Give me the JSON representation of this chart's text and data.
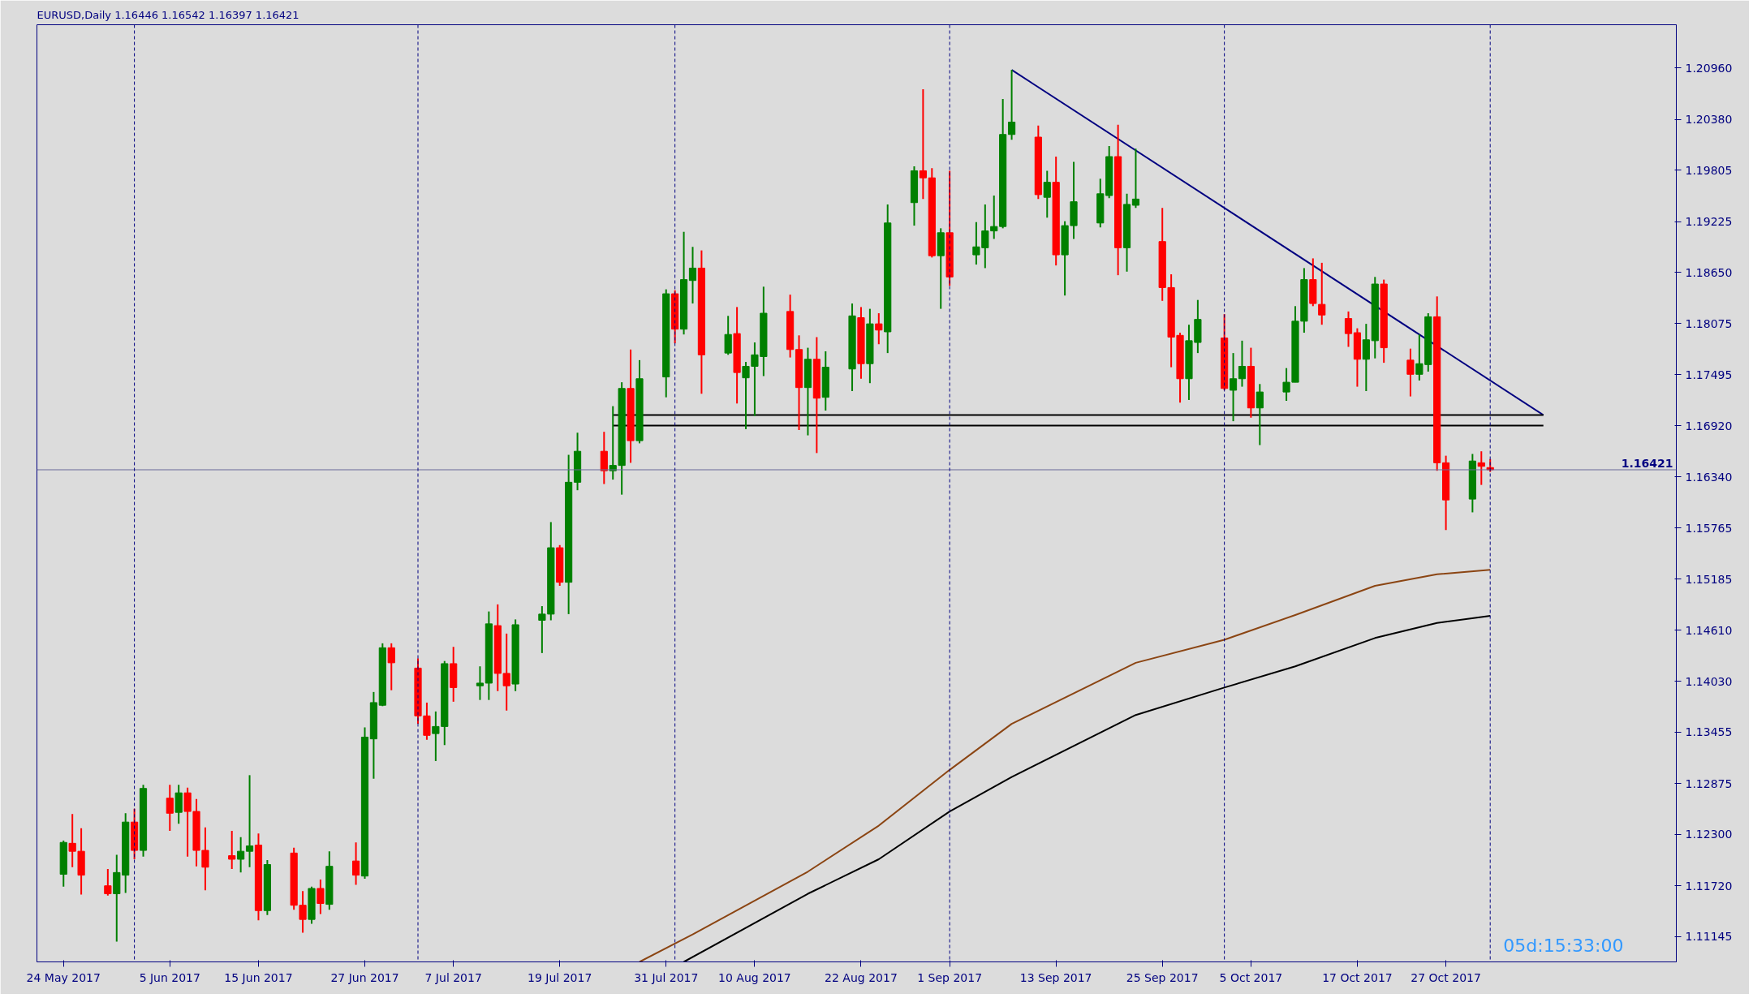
{
  "chart_data": {
    "type": "candlestick",
    "title": "EURUSD,Daily  1.16446 1.16542 1.16397 1.16421",
    "x": [
      "2017-05-24",
      "2017-05-25",
      "2017-05-26",
      "2017-05-29",
      "2017-05-30",
      "2017-05-31",
      "2017-06-01",
      "2017-06-02",
      "2017-06-05",
      "2017-06-06",
      "2017-06-07",
      "2017-06-08",
      "2017-06-09",
      "2017-06-12",
      "2017-06-13",
      "2017-06-14",
      "2017-06-15",
      "2017-06-16",
      "2017-06-19",
      "2017-06-20",
      "2017-06-21",
      "2017-06-22",
      "2017-06-23",
      "2017-06-26",
      "2017-06-27",
      "2017-06-28",
      "2017-06-29",
      "2017-06-30",
      "2017-07-03",
      "2017-07-04",
      "2017-07-05",
      "2017-07-06",
      "2017-07-07",
      "2017-07-10",
      "2017-07-11",
      "2017-07-12",
      "2017-07-13",
      "2017-07-14",
      "2017-07-17",
      "2017-07-18",
      "2017-07-19",
      "2017-07-20",
      "2017-07-21",
      "2017-07-24",
      "2017-07-25",
      "2017-07-26",
      "2017-07-27",
      "2017-07-28",
      "2017-07-31",
      "2017-08-01",
      "2017-08-02",
      "2017-08-03",
      "2017-08-04",
      "2017-08-07",
      "2017-08-08",
      "2017-08-09",
      "2017-08-10",
      "2017-08-11",
      "2017-08-14",
      "2017-08-15",
      "2017-08-16",
      "2017-08-17",
      "2017-08-18",
      "2017-08-21",
      "2017-08-22",
      "2017-08-23",
      "2017-08-24",
      "2017-08-25",
      "2017-08-28",
      "2017-08-29",
      "2017-08-30",
      "2017-08-31",
      "2017-09-01",
      "2017-09-04",
      "2017-09-05",
      "2017-09-06",
      "2017-09-07",
      "2017-09-08",
      "2017-09-11",
      "2017-09-12",
      "2017-09-13",
      "2017-09-14",
      "2017-09-15",
      "2017-09-18",
      "2017-09-19",
      "2017-09-20",
      "2017-09-21",
      "2017-09-22",
      "2017-09-25",
      "2017-09-26",
      "2017-09-27",
      "2017-09-28",
      "2017-09-29",
      "2017-10-02",
      "2017-10-03",
      "2017-10-04",
      "2017-10-05",
      "2017-10-06",
      "2017-10-09",
      "2017-10-10",
      "2017-10-11",
      "2017-10-12",
      "2017-10-13",
      "2017-10-16",
      "2017-10-17",
      "2017-10-18",
      "2017-10-19",
      "2017-10-20",
      "2017-10-23",
      "2017-10-24",
      "2017-10-25",
      "2017-10-26",
      "2017-10-27",
      "2017-10-30",
      "2017-10-31",
      "2017-11-01"
    ],
    "ohlc": [
      [
        1.1185,
        1.1223,
        1.1171,
        1.1221
      ],
      [
        1.122,
        1.1253,
        1.1193,
        1.1211
      ],
      [
        1.1211,
        1.1237,
        1.1162,
        1.1184
      ],
      [
        1.1172,
        1.1191,
        1.1161,
        1.1163
      ],
      [
        1.1163,
        1.1207,
        1.1109,
        1.1187
      ],
      [
        1.1184,
        1.1254,
        1.1164,
        1.1244
      ],
      [
        1.1244,
        1.1259,
        1.1202,
        1.1212
      ],
      [
        1.1212,
        1.1286,
        1.1205,
        1.1282
      ],
      [
        1.1271,
        1.1286,
        1.1234,
        1.1254
      ],
      [
        1.1255,
        1.1286,
        1.1242,
        1.1277
      ],
      [
        1.1277,
        1.1283,
        1.1205,
        1.1256
      ],
      [
        1.1256,
        1.127,
        1.1194,
        1.1212
      ],
      [
        1.1212,
        1.1238,
        1.1167,
        1.1193
      ],
      [
        1.1206,
        1.1234,
        1.1191,
        1.1202
      ],
      [
        1.1202,
        1.1227,
        1.1187,
        1.1211
      ],
      [
        1.1211,
        1.1297,
        1.1193,
        1.1217
      ],
      [
        1.1218,
        1.1231,
        1.1133,
        1.1144
      ],
      [
        1.1144,
        1.1201,
        1.1139,
        1.1196
      ],
      [
        1.1209,
        1.1215,
        1.1145,
        1.115
      ],
      [
        1.115,
        1.1166,
        1.1119,
        1.1134
      ],
      [
        1.1134,
        1.1171,
        1.1129,
        1.1169
      ],
      [
        1.1169,
        1.1179,
        1.114,
        1.1152
      ],
      [
        1.1151,
        1.1211,
        1.1145,
        1.1194
      ],
      [
        1.12,
        1.1221,
        1.1173,
        1.1184
      ],
      [
        1.1183,
        1.1351,
        1.118,
        1.134
      ],
      [
        1.1338,
        1.1391,
        1.1293,
        1.1379
      ],
      [
        1.1376,
        1.1446,
        1.1375,
        1.1441
      ],
      [
        1.1441,
        1.1446,
        1.1393,
        1.1424
      ],
      [
        1.1418,
        1.1429,
        1.1355,
        1.1364
      ],
      [
        1.1364,
        1.1379,
        1.1337,
        1.1342
      ],
      [
        1.1344,
        1.1369,
        1.1313,
        1.1352
      ],
      [
        1.1352,
        1.1426,
        1.1331,
        1.1423
      ],
      [
        1.1423,
        1.1442,
        1.138,
        1.1396
      ],
      [
        1.1398,
        1.142,
        1.1382,
        1.1401
      ],
      [
        1.1401,
        1.1482,
        1.1382,
        1.1468
      ],
      [
        1.1466,
        1.149,
        1.1392,
        1.1412
      ],
      [
        1.1412,
        1.1457,
        1.137,
        1.1398
      ],
      [
        1.14,
        1.1473,
        1.1392,
        1.1467
      ],
      [
        1.1472,
        1.1488,
        1.1435,
        1.1479
      ],
      [
        1.1479,
        1.1583,
        1.1472,
        1.1554
      ],
      [
        1.1554,
        1.1557,
        1.1511,
        1.1515
      ],
      [
        1.1515,
        1.1659,
        1.1479,
        1.1628
      ],
      [
        1.1628,
        1.1684,
        1.1619,
        1.1663
      ],
      [
        1.1663,
        1.1685,
        1.1626,
        1.1641
      ],
      [
        1.1641,
        1.1714,
        1.1631,
        1.1647
      ],
      [
        1.1647,
        1.1741,
        1.1614,
        1.1734
      ],
      [
        1.1734,
        1.1778,
        1.165,
        1.1675
      ],
      [
        1.1675,
        1.1766,
        1.1672,
        1.1745
      ],
      [
        1.1747,
        1.1846,
        1.1724,
        1.1841
      ],
      [
        1.1841,
        1.1845,
        1.1785,
        1.1801
      ],
      [
        1.1801,
        1.1911,
        1.1795,
        1.1857
      ],
      [
        1.1856,
        1.1894,
        1.183,
        1.187
      ],
      [
        1.187,
        1.189,
        1.1728,
        1.1772
      ],
      [
        1.1774,
        1.1816,
        1.1772,
        1.1795
      ],
      [
        1.1796,
        1.1826,
        1.1717,
        1.1752
      ],
      [
        1.1746,
        1.1764,
        1.1688,
        1.1759
      ],
      [
        1.1759,
        1.1786,
        1.1703,
        1.1772
      ],
      [
        1.177,
        1.1849,
        1.1748,
        1.1819
      ],
      [
        1.1821,
        1.184,
        1.1769,
        1.1778
      ],
      [
        1.1778,
        1.1794,
        1.1687,
        1.1735
      ],
      [
        1.1735,
        1.178,
        1.1681,
        1.1767
      ],
      [
        1.1767,
        1.1792,
        1.1661,
        1.1723
      ],
      [
        1.1724,
        1.1776,
        1.1709,
        1.1758
      ],
      [
        1.1756,
        1.183,
        1.1731,
        1.1816
      ],
      [
        1.1814,
        1.1826,
        1.1745,
        1.1762
      ],
      [
        1.1762,
        1.1824,
        1.174,
        1.1807
      ],
      [
        1.1807,
        1.1819,
        1.1784,
        1.18
      ],
      [
        1.1798,
        1.1942,
        1.1774,
        1.1921
      ],
      [
        1.1944,
        1.1985,
        1.1918,
        1.198
      ],
      [
        1.198,
        1.2072,
        1.1948,
        1.1972
      ],
      [
        1.1972,
        1.1983,
        1.1882,
        1.1884
      ],
      [
        1.1884,
        1.1915,
        1.1824,
        1.191
      ],
      [
        1.191,
        1.198,
        1.185,
        1.186
      ],
      [
        1.1885,
        1.1922,
        1.1874,
        1.1894
      ],
      [
        1.1893,
        1.1942,
        1.187,
        1.1912
      ],
      [
        1.1912,
        1.1952,
        1.1903,
        1.1917
      ],
      [
        1.1917,
        1.2061,
        1.1915,
        1.2021
      ],
      [
        1.2021,
        1.2094,
        1.2015,
        1.2035
      ],
      [
        1.2018,
        1.2031,
        1.1948,
        1.1953
      ],
      [
        1.195,
        1.198,
        1.1927,
        1.1967
      ],
      [
        1.1967,
        1.1996,
        1.1873,
        1.1885
      ],
      [
        1.1885,
        1.1923,
        1.1839,
        1.1918
      ],
      [
        1.1918,
        1.199,
        1.1903,
        1.1945
      ],
      [
        1.1921,
        1.1971,
        1.1916,
        1.1954
      ],
      [
        1.1952,
        1.2008,
        1.1949,
        1.1996
      ],
      [
        1.1996,
        1.2032,
        1.1862,
        1.1893
      ],
      [
        1.1893,
        1.1954,
        1.1866,
        1.1942
      ],
      [
        1.1941,
        1.2005,
        1.1938,
        1.1948
      ],
      [
        1.19,
        1.1938,
        1.1833,
        1.1848
      ],
      [
        1.1848,
        1.1863,
        1.1758,
        1.1792
      ],
      [
        1.1794,
        1.1797,
        1.1718,
        1.1745
      ],
      [
        1.1745,
        1.1806,
        1.1721,
        1.1788
      ],
      [
        1.1786,
        1.1834,
        1.1774,
        1.1812
      ],
      [
        1.1791,
        1.1818,
        1.1732,
        1.1734
      ],
      [
        1.1732,
        1.1774,
        1.1697,
        1.1745
      ],
      [
        1.1745,
        1.1788,
        1.1736,
        1.1759
      ],
      [
        1.1759,
        1.178,
        1.1701,
        1.1712
      ],
      [
        1.1712,
        1.1739,
        1.167,
        1.173
      ],
      [
        1.173,
        1.1757,
        1.172,
        1.1741
      ],
      [
        1.1741,
        1.1827,
        1.1741,
        1.181
      ],
      [
        1.181,
        1.187,
        1.1797,
        1.1857
      ],
      [
        1.1857,
        1.1881,
        1.1827,
        1.183
      ],
      [
        1.1829,
        1.1876,
        1.1806,
        1.1817
      ],
      [
        1.1813,
        1.1821,
        1.1781,
        1.1796
      ],
      [
        1.1797,
        1.1802,
        1.1736,
        1.1767
      ],
      [
        1.1767,
        1.1807,
        1.1731,
        1.1789
      ],
      [
        1.1788,
        1.186,
        1.1768,
        1.1852
      ],
      [
        1.1852,
        1.1857,
        1.1763,
        1.178
      ],
      [
        1.1766,
        1.1779,
        1.1725,
        1.175
      ],
      [
        1.175,
        1.1795,
        1.1743,
        1.1762
      ],
      [
        1.1761,
        1.1819,
        1.1753,
        1.1815
      ],
      [
        1.1815,
        1.1838,
        1.1641,
        1.165
      ],
      [
        1.165,
        1.1658,
        1.1574,
        1.1608
      ],
      [
        1.1609,
        1.166,
        1.1594,
        1.1652
      ],
      [
        1.165,
        1.1663,
        1.1625,
        1.1646
      ],
      [
        1.16446,
        1.16542,
        1.16397,
        1.16421
      ]
    ],
    "colors": [
      "#008000",
      "#ff0000",
      "#ff0000",
      "#ff0000",
      "#008000",
      "#008000",
      "#ff0000",
      "#008000",
      "#ff0000",
      "#008000",
      "#ff0000",
      "#ff0000",
      "#ff0000",
      "#ff0000",
      "#008000",
      "#008000",
      "#ff0000",
      "#008000",
      "#ff0000",
      "#ff0000",
      "#008000",
      "#ff0000",
      "#008000",
      "#ff0000",
      "#008000",
      "#008000",
      "#008000",
      "#ff0000",
      "#ff0000",
      "#ff0000",
      "#008000",
      "#008000",
      "#ff0000",
      "#008000",
      "#008000",
      "#ff0000",
      "#ff0000",
      "#008000",
      "#008000",
      "#008000",
      "#ff0000",
      "#008000",
      "#008000",
      "#ff0000",
      "#008000",
      "#008000",
      "#ff0000",
      "#008000",
      "#008000",
      "#ff0000",
      "#008000",
      "#008000",
      "#ff0000",
      "#008000",
      "#ff0000",
      "#008000",
      "#008000",
      "#008000",
      "#ff0000",
      "#ff0000",
      "#008000",
      "#ff0000",
      "#008000",
      "#008000",
      "#ff0000",
      "#008000",
      "#ff0000",
      "#008000",
      "#008000",
      "#ff0000",
      "#ff0000",
      "#008000",
      "#ff0000",
      "#008000",
      "#008000",
      "#008000",
      "#008000",
      "#008000",
      "#ff0000",
      "#008000",
      "#ff0000",
      "#008000",
      "#008000",
      "#008000",
      "#008000",
      "#ff0000",
      "#008000",
      "#008000",
      "#ff0000",
      "#ff0000",
      "#ff0000",
      "#008000",
      "#008000",
      "#ff0000",
      "#008000",
      "#008000",
      "#ff0000",
      "#008000",
      "#008000",
      "#008000",
      "#008000",
      "#ff0000",
      "#ff0000",
      "#ff0000",
      "#ff0000",
      "#008000",
      "#008000",
      "#ff0000",
      "#ff0000",
      "#008000",
      "#008000",
      "#ff0000",
      "#ff0000",
      "#008000",
      "#ff0000",
      "#ff0000"
    ],
    "series": [
      {
        "type": "line",
        "color": "#8b4513",
        "x": [
          "2017-07-28",
          "2017-08-03",
          "2017-08-16",
          "2017-08-24",
          "2017-09-01",
          "2017-09-08",
          "2017-09-22",
          "2017-10-02",
          "2017-10-10",
          "2017-10-19",
          "2017-10-26",
          "2017-11-01"
        ],
        "values": [
          1.1086,
          1.1117,
          1.1188,
          1.124,
          1.1303,
          1.1355,
          1.1424,
          1.145,
          1.1478,
          1.1511,
          1.1524,
          1.1529
        ]
      },
      {
        "type": "line",
        "color": "#000000",
        "x": [
          "2017-08-02",
          "2017-08-16",
          "2017-08-24",
          "2017-09-01",
          "2017-09-08",
          "2017-09-22",
          "2017-10-02",
          "2017-10-10",
          "2017-10-19",
          "2017-10-26",
          "2017-11-01"
        ],
        "values": [
          1.1086,
          1.1163,
          1.1202,
          1.1256,
          1.1295,
          1.1365,
          1.1396,
          1.142,
          1.1452,
          1.1469,
          1.1477
        ]
      },
      {
        "type": "line",
        "color": "#000080",
        "x": [
          "2017-09-08",
          "2017-11-07"
        ],
        "values": [
          1.2094,
          1.1704
        ]
      },
      {
        "type": "line",
        "color": "#000000",
        "x": [
          "2017-07-25",
          "2017-11-07"
        ],
        "values": [
          1.1704,
          1.1704
        ]
      },
      {
        "type": "line",
        "color": "#000000",
        "x": [
          "2017-07-25",
          "2017-11-07"
        ],
        "values": [
          1.1692,
          1.1692
        ]
      }
    ],
    "xlim": [
      "2017-05-21",
      "2017-11-22"
    ],
    "xticks": [
      {
        "value": "2017-05-24",
        "label": "24 May 2017"
      },
      {
        "value": "2017-06-05",
        "label": "5 Jun 2017"
      },
      {
        "value": "2017-06-15",
        "label": "15 Jun 2017"
      },
      {
        "value": "2017-06-27",
        "label": "27 Jun 2017"
      },
      {
        "value": "2017-07-07",
        "label": "7 Jul 2017"
      },
      {
        "value": "2017-07-19",
        "label": "19 Jul 2017"
      },
      {
        "value": "2017-07-31",
        "label": "31 Jul 2017"
      },
      {
        "value": "2017-08-10",
        "label": "10 Aug 2017"
      },
      {
        "value": "2017-08-22",
        "label": "22 Aug 2017"
      },
      {
        "value": "2017-09-01",
        "label": "1 Sep 2017"
      },
      {
        "value": "2017-09-13",
        "label": "13 Sep 2017"
      },
      {
        "value": "2017-09-25",
        "label": "25 Sep 2017"
      },
      {
        "value": "2017-10-05",
        "label": "5 Oct 2017"
      },
      {
        "value": "2017-10-17",
        "label": "17 Oct 2017"
      },
      {
        "value": "2017-10-27",
        "label": "27 Oct 2017"
      }
    ],
    "ylim": [
      1.1086,
      1.2145
    ],
    "yticks": [
      {
        "value": 1.2096,
        "label": "1.20960"
      },
      {
        "value": 1.2038,
        "label": "1.20380"
      },
      {
        "value": 1.19805,
        "label": "1.19805"
      },
      {
        "value": 1.19225,
        "label": "1.19225"
      },
      {
        "value": 1.1865,
        "label": "1.18650"
      },
      {
        "value": 1.18075,
        "label": "1.18075"
      },
      {
        "value": 1.17495,
        "label": "1.17495"
      },
      {
        "value": 1.1692,
        "label": "1.16920"
      },
      {
        "value": 1.1634,
        "label": "1.16340"
      },
      {
        "value": 1.15765,
        "label": "1.15765"
      },
      {
        "value": 1.15185,
        "label": "1.15185"
      },
      {
        "value": 1.1461,
        "label": "1.14610"
      },
      {
        "value": 1.1403,
        "label": "1.14030"
      },
      {
        "value": 1.13455,
        "label": "1.13455"
      },
      {
        "value": 1.12875,
        "label": "1.12875"
      },
      {
        "value": 1.123,
        "label": "1.12300"
      },
      {
        "value": 1.1172,
        "label": "1.11720"
      },
      {
        "value": 1.11145,
        "label": "1.11145"
      }
    ],
    "ref_lines": [
      {
        "axis": "y",
        "value": 1.16421,
        "label": "1.16421",
        "color": "#6a6a9a",
        "line_style": "solid"
      },
      {
        "axis": "x",
        "value": "2017-06-01",
        "color": "#000080",
        "line_style": "dashed"
      },
      {
        "axis": "x",
        "value": "2017-07-03",
        "color": "#000080",
        "line_style": "dashed"
      },
      {
        "axis": "x",
        "value": "2017-08-01",
        "color": "#000080",
        "line_style": "dashed"
      },
      {
        "axis": "x",
        "value": "2017-09-01",
        "color": "#000080",
        "line_style": "dashed"
      },
      {
        "axis": "x",
        "value": "2017-10-02",
        "color": "#000080",
        "line_style": "dashed"
      },
      {
        "axis": "x",
        "value": "2017-11-01",
        "color": "#000080",
        "line_style": "dashed"
      }
    ],
    "annotations": [
      "05d:15:33:00"
    ],
    "grid": false
  }
}
